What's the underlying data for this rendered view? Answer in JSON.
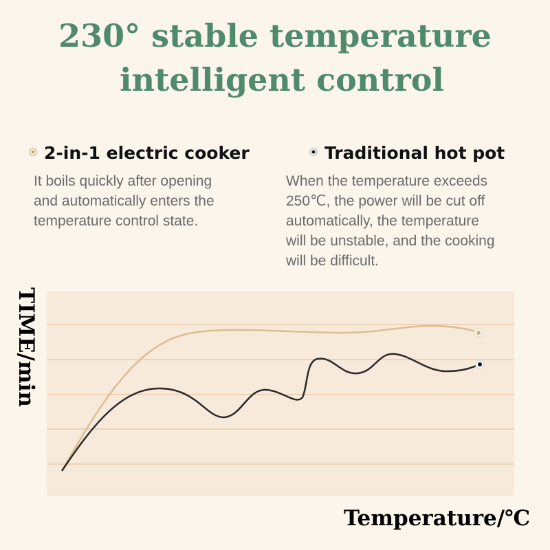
{
  "header": {
    "title_lines": [
      "230° stable temperature",
      "intelligent control"
    ]
  },
  "items": [
    {
      "heading": "2-in-1 electric cooker",
      "description_lines": [
        "It boils quickly after opening",
        "and automatically enters the",
        "temperature control state."
      ]
    },
    {
      "heading": "Traditional hot pot",
      "description_lines": [
        "When the temperature exceeds",
        "250℃, the power will be cut off",
        "automatically, the temperature",
        "will be unstable, and the cooking",
        "will be difficult."
      ]
    }
  ],
  "diagram": {
    "y_label": "TIME/min",
    "x_label": "Temperature/℃"
  }
}
